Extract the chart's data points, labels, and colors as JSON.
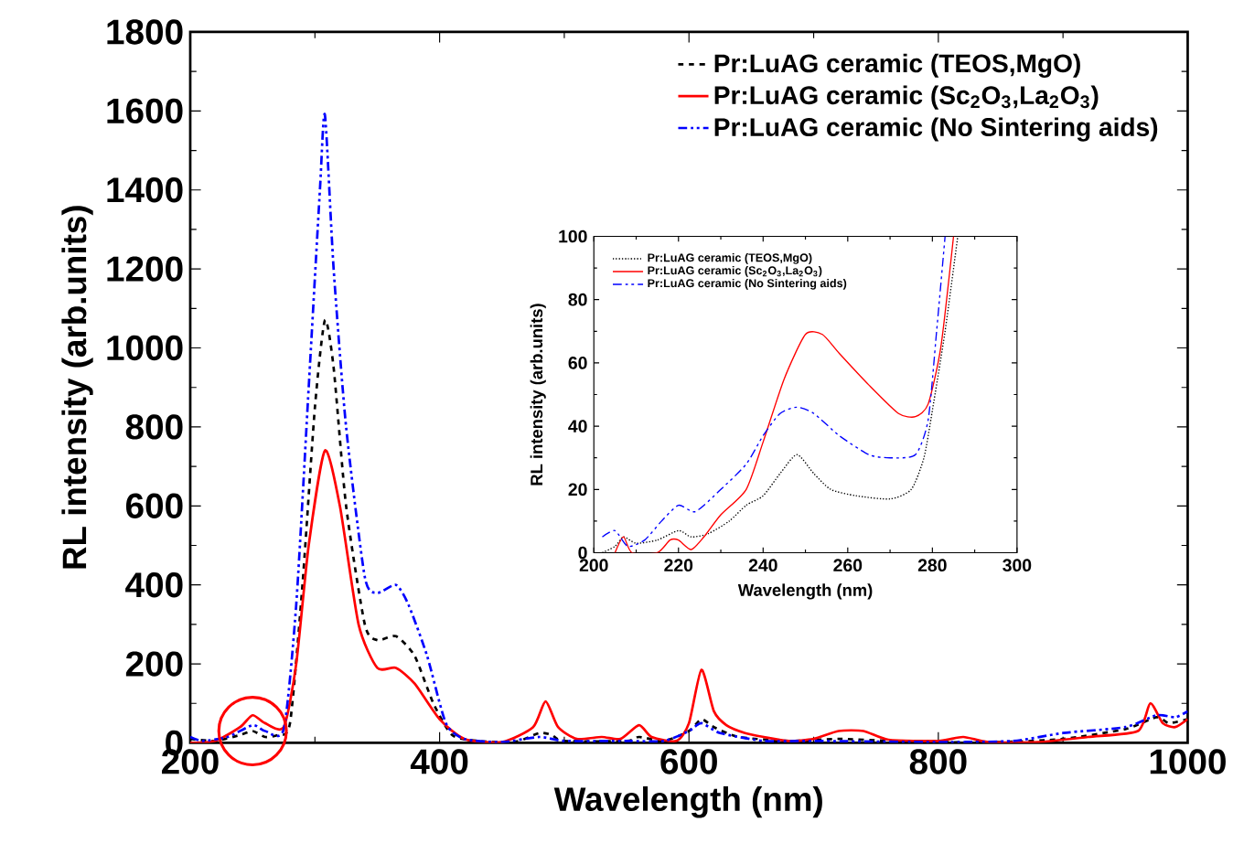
{
  "chart_data": [
    {
      "type": "line",
      "xlabel": "Wavelength (nm)",
      "ylabel": "RL intensity (arb.units)",
      "xlim": [
        200,
        1000
      ],
      "ylim": [
        0,
        1800
      ],
      "xticks": [
        200,
        400,
        600,
        800,
        1000
      ],
      "yticks": [
        0,
        200,
        400,
        600,
        800,
        1000,
        1200,
        1400,
        1600,
        1800
      ],
      "legend": "top right",
      "series": [
        {
          "name": "Pr:LuAG ceramic (TEOS,MgO)",
          "color": "#000000",
          "line_style": "dashed",
          "x": [
            200,
            220,
            240,
            250,
            260,
            270,
            280,
            290,
            300,
            308,
            315,
            325,
            340,
            350,
            365,
            380,
            395,
            410,
            430,
            460,
            480,
            490,
            500,
            550,
            560,
            580,
            600,
            610,
            620,
            640,
            680,
            720,
            760,
            800,
            850,
            900,
            950,
            975,
            985,
            1000
          ],
          "values": [
            10,
            5,
            20,
            30,
            15,
            20,
            50,
            400,
            850,
            1070,
            950,
            600,
            300,
            260,
            270,
            220,
            100,
            20,
            5,
            2,
            25,
            20,
            5,
            5,
            15,
            5,
            30,
            60,
            40,
            15,
            5,
            10,
            5,
            2,
            2,
            10,
            35,
            65,
            50,
            60
          ]
        },
        {
          "name": "Pr:LuAG ceramic (Sc$_{2}$O$_{3}$,La$_{2}$O$_{3}$)",
          "color": "#ff0000",
          "line_style": "solid",
          "x": [
            200,
            220,
            240,
            250,
            260,
            275,
            285,
            295,
            308,
            320,
            335,
            350,
            365,
            380,
            400,
            420,
            450,
            475,
            485,
            495,
            510,
            530,
            545,
            560,
            570,
            590,
            600,
            610,
            620,
            630,
            645,
            660,
            680,
            700,
            720,
            740,
            760,
            800,
            820,
            840,
            880,
            920,
            960,
            970,
            980,
            990,
            1000
          ],
          "values": [
            0,
            5,
            40,
            70,
            50,
            40,
            200,
            500,
            740,
            600,
            300,
            190,
            190,
            150,
            60,
            10,
            2,
            40,
            105,
            40,
            10,
            15,
            10,
            45,
            15,
            5,
            50,
            185,
            80,
            45,
            25,
            15,
            5,
            10,
            30,
            30,
            8,
            5,
            15,
            2,
            2,
            15,
            30,
            100,
            50,
            40,
            60
          ]
        },
        {
          "name": "Pr:LuAG ceramic (No Sintering aids)",
          "color": "#0000ff",
          "line_style": "dashdotted",
          "x": [
            200,
            210,
            230,
            250,
            260,
            275,
            285,
            295,
            304,
            308,
            315,
            325,
            340,
            350,
            365,
            375,
            390,
            405,
            420,
            450,
            480,
            500,
            550,
            580,
            600,
            610,
            625,
            660,
            700,
            800,
            860,
            900,
            950,
            975,
            990,
            1000
          ],
          "values": [
            15,
            5,
            15,
            45,
            30,
            35,
            350,
            900,
            1400,
            1590,
            1200,
            800,
            420,
            380,
            400,
            350,
            220,
            50,
            10,
            2,
            15,
            5,
            5,
            5,
            30,
            50,
            25,
            5,
            5,
            2,
            5,
            25,
            40,
            70,
            65,
            80
          ]
        }
      ]
    },
    {
      "type": "line",
      "xlabel": "Wavelength (nm)",
      "ylabel": "RL intensity (arb.units)",
      "xlim": [
        200,
        300
      ],
      "ylim": [
        0,
        100
      ],
      "xticks": [
        200,
        220,
        240,
        260,
        280,
        300
      ],
      "yticks": [
        0,
        20,
        40,
        60,
        80,
        100
      ],
      "legend": "top left",
      "series": [
        {
          "name": "Pr:LuAG ceramic (TEOS,MgO)",
          "color": "#000000",
          "line_style": "dotted",
          "x": [
            202,
            205,
            207,
            210,
            215,
            220,
            223,
            227,
            232,
            236,
            240,
            244,
            248,
            252,
            256,
            262,
            270,
            275,
            278,
            280,
            283,
            286
          ],
          "values": [
            0,
            2,
            5,
            3,
            4,
            7,
            5,
            6,
            10,
            15,
            18,
            25,
            31,
            25,
            20,
            18,
            17,
            20,
            30,
            45,
            70,
            100
          ]
        },
        {
          "name": "Pr:LuAG ceramic (Sc$_{2}$O$_{3}$,La$_{2}$O$_{3}$)",
          "color": "#ff0000",
          "line_style": "solid",
          "x": [
            205,
            207,
            209,
            215,
            218,
            220,
            223,
            226,
            230,
            236,
            240,
            245,
            250,
            254,
            258,
            265,
            272,
            276,
            279,
            282,
            285
          ],
          "values": [
            0,
            5,
            0,
            0,
            4,
            4,
            1,
            5,
            12,
            20,
            35,
            55,
            69,
            69,
            63,
            53,
            44,
            43,
            47,
            65,
            100
          ]
        },
        {
          "name": "Pr:LuAG ceramic (No Sintering aids)",
          "color": "#0000ff",
          "line_style": "dashdotted",
          "x": [
            202,
            205,
            208,
            212,
            216,
            220,
            224,
            230,
            236,
            240,
            244,
            248,
            252,
            258,
            265,
            270,
            276,
            279,
            281,
            283
          ],
          "values": [
            5,
            7,
            2,
            4,
            10,
            15,
            13,
            20,
            28,
            37,
            44,
            46,
            44,
            37,
            31,
            30,
            31,
            42,
            70,
            100
          ]
        }
      ]
    }
  ]
}
